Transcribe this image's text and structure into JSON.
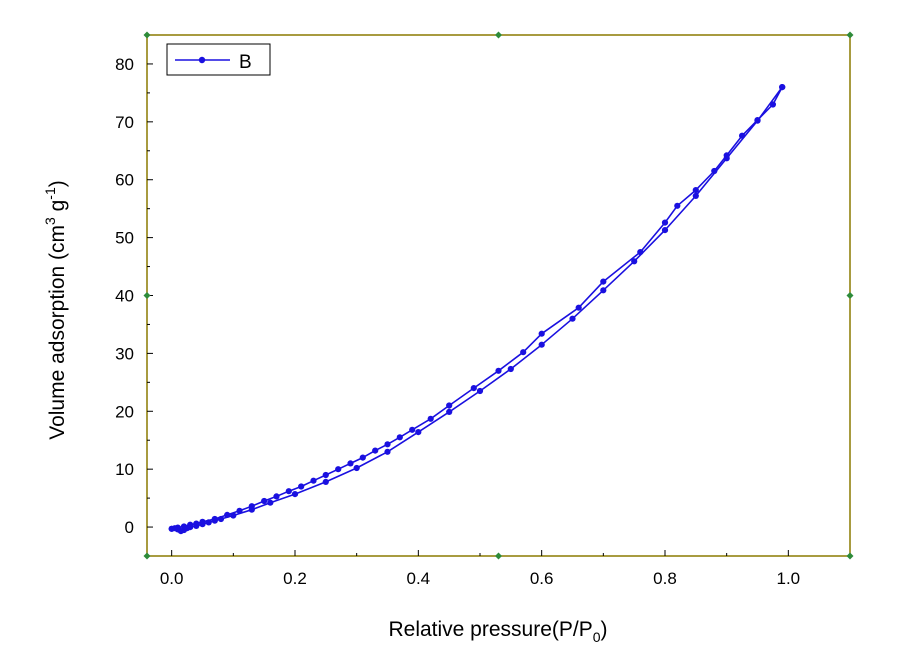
{
  "chart_data": {
    "type": "line",
    "xlabel": "Relative pressure(P/P",
    "xlabel_sub": "0",
    "xlabel_end": ")",
    "ylabel": "Volume adsorption (cm",
    "ylabel_sup1": "3",
    "ylabel_mid": " g",
    "ylabel_sup2": "-1",
    "ylabel_end": ")",
    "xlim": [
      -0.04,
      1.1
    ],
    "ylim": [
      -5,
      85
    ],
    "x_ticks": [
      "0.0",
      "0.2",
      "0.4",
      "0.6",
      "0.8",
      "1.0"
    ],
    "y_ticks": [
      "0",
      "10",
      "20",
      "30",
      "40",
      "50",
      "60",
      "70",
      "80"
    ],
    "legend": {
      "position": "top-left"
    },
    "grid": false,
    "colors": {
      "series": "#1a10e0",
      "frame": "#8b7a00",
      "handle": "#2e8b3a"
    },
    "series": [
      {
        "name": "B",
        "segments": [
          {
            "part": "adsorption",
            "points": [
              [
                0.0,
                -0.3
              ],
              [
                0.005,
                -0.2
              ],
              [
                0.01,
                -0.4
              ],
              [
                0.015,
                -0.7
              ],
              [
                0.02,
                -0.5
              ],
              [
                0.025,
                -0.2
              ],
              [
                0.03,
                0.0
              ],
              [
                0.04,
                0.2
              ],
              [
                0.05,
                0.5
              ],
              [
                0.06,
                0.8
              ],
              [
                0.07,
                1.1
              ],
              [
                0.08,
                1.4
              ],
              [
                0.1,
                2.0
              ],
              [
                0.13,
                3.0
              ],
              [
                0.16,
                4.2
              ],
              [
                0.2,
                5.7
              ],
              [
                0.25,
                7.8
              ],
              [
                0.3,
                10.2
              ],
              [
                0.35,
                13.0
              ],
              [
                0.4,
                16.4
              ],
              [
                0.45,
                19.9
              ],
              [
                0.5,
                23.5
              ],
              [
                0.55,
                27.3
              ],
              [
                0.6,
                31.5
              ],
              [
                0.65,
                36.0
              ],
              [
                0.7,
                40.9
              ],
              [
                0.75,
                45.9
              ],
              [
                0.8,
                51.3
              ],
              [
                0.85,
                57.2
              ],
              [
                0.9,
                63.7
              ],
              [
                0.95,
                70.2
              ],
              [
                0.99,
                76.0
              ]
            ]
          },
          {
            "part": "desorption",
            "points": [
              [
                0.99,
                76.0
              ],
              [
                0.975,
                73.0
              ],
              [
                0.95,
                70.3
              ],
              [
                0.925,
                67.6
              ],
              [
                0.9,
                64.2
              ],
              [
                0.88,
                61.5
              ],
              [
                0.85,
                58.2
              ],
              [
                0.82,
                55.5
              ],
              [
                0.8,
                52.6
              ],
              [
                0.76,
                47.5
              ],
              [
                0.7,
                42.4
              ],
              [
                0.66,
                37.9
              ],
              [
                0.6,
                33.4
              ],
              [
                0.57,
                30.2
              ],
              [
                0.53,
                27.0
              ],
              [
                0.49,
                24.0
              ],
              [
                0.45,
                21.0
              ],
              [
                0.42,
                18.7
              ],
              [
                0.39,
                16.8
              ],
              [
                0.37,
                15.5
              ],
              [
                0.35,
                14.3
              ],
              [
                0.33,
                13.2
              ],
              [
                0.31,
                12.0
              ],
              [
                0.29,
                11.0
              ],
              [
                0.27,
                10.0
              ],
              [
                0.25,
                9.0
              ],
              [
                0.23,
                8.0
              ],
              [
                0.21,
                7.0
              ],
              [
                0.19,
                6.2
              ],
              [
                0.17,
                5.3
              ],
              [
                0.15,
                4.5
              ],
              [
                0.13,
                3.6
              ],
              [
                0.11,
                2.8
              ],
              [
                0.09,
                2.1
              ],
              [
                0.07,
                1.4
              ],
              [
                0.05,
                0.9
              ],
              [
                0.04,
                0.6
              ],
              [
                0.03,
                0.4
              ],
              [
                0.02,
                0.1
              ],
              [
                0.01,
                -0.1
              ],
              [
                0.0,
                -0.3
              ]
            ]
          }
        ]
      }
    ]
  }
}
